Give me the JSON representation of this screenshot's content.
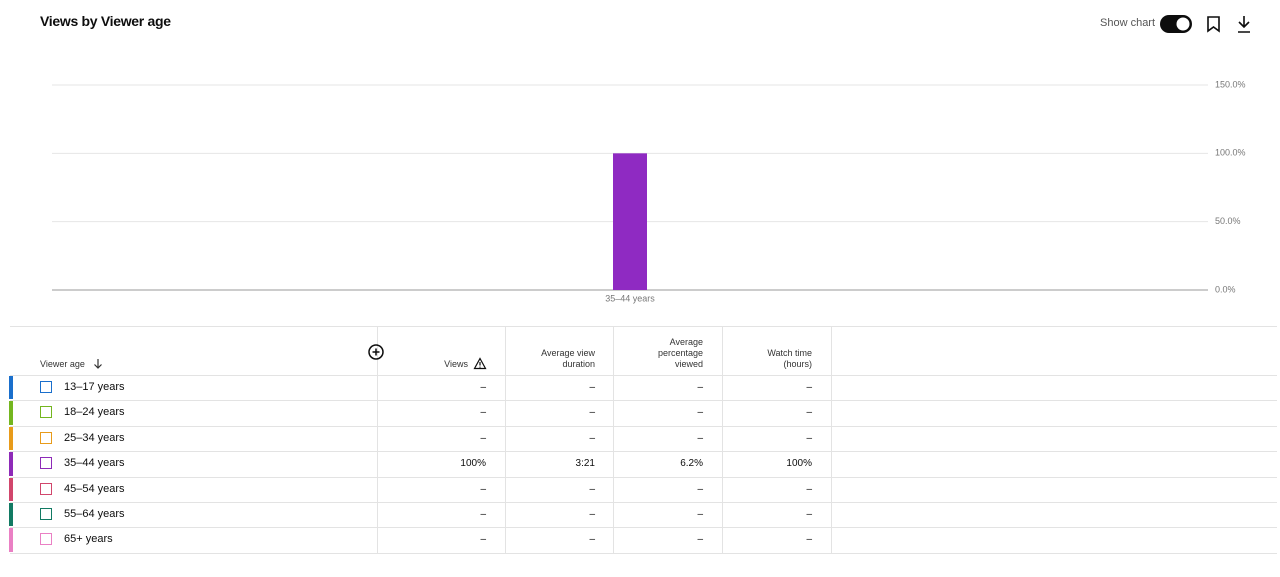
{
  "header": {
    "title": "Views by Viewer age",
    "toggle_label": "Show chart"
  },
  "chart_data": {
    "type": "bar",
    "categories": [
      "35–44 years"
    ],
    "values": [
      100
    ],
    "color": "#8f2ac2",
    "ylim": [
      0,
      150
    ],
    "yticks": [
      {
        "value": 0,
        "label": "0.0%"
      },
      {
        "value": 50,
        "label": "50.0%"
      },
      {
        "value": 100,
        "label": "100.0%"
      },
      {
        "value": 150,
        "label": "150.0%"
      }
    ],
    "grid": true
  },
  "table": {
    "columns": [
      "Viewer age",
      "Views",
      "Average view duration",
      "Average percentage viewed",
      "Watch time (hours)"
    ],
    "rows": [
      {
        "label": "13–17 years",
        "color": "#1a6fcc",
        "cells": [
          "–",
          "–",
          "–",
          "–"
        ]
      },
      {
        "label": "18–24 years",
        "color": "#74b61f",
        "cells": [
          "–",
          "–",
          "–",
          "–"
        ]
      },
      {
        "label": "25–34 years",
        "color": "#e89b1a",
        "cells": [
          "–",
          "–",
          "–",
          "–"
        ]
      },
      {
        "label": "35–44 years",
        "color": "#8e2ab8",
        "cells": [
          "100%",
          "3:21",
          "6.2%",
          "100%"
        ]
      },
      {
        "label": "45–54 years",
        "color": "#d1466c",
        "cells": [
          "–",
          "–",
          "–",
          "–"
        ]
      },
      {
        "label": "55–64 years",
        "color": "#127a63",
        "cells": [
          "–",
          "–",
          "–",
          "–"
        ]
      },
      {
        "label": "65+ years",
        "color": "#ea80c4",
        "cells": [
          "–",
          "–",
          "–",
          "–"
        ]
      }
    ]
  }
}
